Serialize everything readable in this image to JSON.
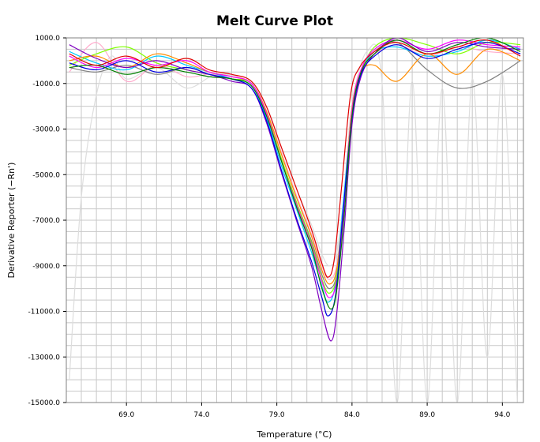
{
  "chart_data": {
    "type": "line",
    "title": "Melt Curve Plot",
    "xlabel": "Temperature (°C)",
    "ylabel": "Derivative Reporter (−Rn')",
    "xlim": [
      65.0,
      95.4
    ],
    "ylim": [
      -15000,
      1000
    ],
    "grid": true,
    "legend": "none",
    "x_ticks": [
      "69.0",
      "74.0",
      "79.0",
      "84.0",
      "89.0",
      "94.0"
    ],
    "x_tick_values": [
      69,
      74,
      79,
      84,
      89,
      94
    ],
    "y_ticks": [
      "1000.0",
      "-1000.0",
      "-3000.0",
      "-5000.0",
      "-7000.0",
      "-9000.0",
      "-11000.0",
      "-13000.0",
      "-15000.0"
    ],
    "y_tick_values": [
      1000,
      -1000,
      -3000,
      -5000,
      -7000,
      -9000,
      -11000,
      -13000,
      -15000
    ],
    "series": [
      {
        "color": "#e00000",
        "peak_x": 82.4,
        "peak_y": -9500,
        "x": [
          65.2,
          67,
          69,
          71,
          73,
          74.5,
          76,
          77.3,
          78.3,
          79.3,
          80.3,
          81.3,
          82.0,
          82.4,
          82.8,
          83.3,
          83.9,
          84.5,
          85.5,
          87,
          89,
          91,
          93,
          95.2
        ],
        "y": [
          300,
          -200,
          200,
          -300,
          100,
          -400,
          -600,
          -900,
          -2000,
          -3800,
          -5600,
          -7400,
          -8900,
          -9500,
          -8800,
          -5600,
          -1500,
          -300,
          400,
          800,
          300,
          600,
          900,
          200
        ]
      },
      {
        "color": "#008000",
        "peak_x": 82.6,
        "peak_y": -10900,
        "x": [
          65.2,
          67,
          69,
          71,
          73,
          74.5,
          76,
          77.3,
          78.3,
          79.3,
          80.3,
          81.3,
          82.0,
          82.6,
          83.0,
          83.5,
          84.0,
          84.6,
          85.5,
          87,
          89,
          91,
          93,
          95.2
        ],
        "y": [
          -300,
          -200,
          -600,
          -300,
          -500,
          -700,
          -800,
          -1100,
          -2400,
          -4400,
          -6400,
          -8200,
          -10000,
          -10900,
          -10000,
          -6600,
          -2400,
          -500,
          300,
          900,
          300,
          700,
          1000,
          400
        ]
      },
      {
        "color": "#0000e0",
        "peak_x": 82.4,
        "peak_y": -11200,
        "x": [
          65.2,
          67,
          69,
          71,
          73,
          74.5,
          76,
          77.3,
          78.3,
          79.3,
          80.3,
          81.3,
          82.0,
          82.4,
          82.9,
          83.4,
          84.0,
          84.6,
          85.5,
          87,
          89,
          91,
          93,
          95.2
        ],
        "y": [
          -100,
          -400,
          0,
          -500,
          -300,
          -600,
          -800,
          -1200,
          -2600,
          -4800,
          -6900,
          -8800,
          -10400,
          -11200,
          -10300,
          -6700,
          -2500,
          -600,
          200,
          700,
          100,
          500,
          800,
          300
        ]
      },
      {
        "color": "#8000c0",
        "peak_x": 82.6,
        "peak_y": -12300,
        "x": [
          65.2,
          67,
          69,
          71,
          73,
          74.5,
          76,
          77.3,
          78.3,
          79.3,
          80.3,
          81.3,
          82.0,
          82.6,
          83.0,
          83.5,
          84.0,
          84.6,
          85.5,
          87,
          89,
          91,
          93,
          95.2
        ],
        "y": [
          700,
          100,
          -300,
          0,
          -400,
          -600,
          -900,
          -1200,
          -2700,
          -4900,
          -7000,
          -9000,
          -11000,
          -12300,
          -11000,
          -7200,
          -2800,
          -700,
          300,
          1000,
          400,
          800,
          600,
          500
        ]
      },
      {
        "color": "#ff00ff",
        "peak_x": 82.5,
        "peak_y": -10400,
        "x": [
          65.2,
          67,
          69,
          71,
          73,
          74.5,
          76,
          77.3,
          78.3,
          79.3,
          80.3,
          81.3,
          82.0,
          82.5,
          83.0,
          83.5,
          84.0,
          84.6,
          85.5,
          87,
          89,
          91,
          93,
          95.2
        ],
        "y": [
          200,
          -300,
          100,
          -200,
          0,
          -500,
          -700,
          -1000,
          -2300,
          -4400,
          -6300,
          -8100,
          -9700,
          -10400,
          -9600,
          -6300,
          -2200,
          -400,
          500,
          900,
          500,
          900,
          700,
          600
        ]
      },
      {
        "color": "#ff8c00",
        "peak_x": 82.5,
        "peak_y": -9800,
        "x": [
          65.2,
          67,
          69,
          71,
          73,
          74.5,
          76,
          77.3,
          78.3,
          79.3,
          80.3,
          81.3,
          82.0,
          82.5,
          83.0,
          83.5,
          84.0,
          84.6,
          85.5,
          87,
          89,
          91,
          93,
          95.2
        ],
        "y": [
          0,
          200,
          -300,
          300,
          -100,
          -500,
          -700,
          -1000,
          -2200,
          -4100,
          -6000,
          -7700,
          -9200,
          -9800,
          -9100,
          -6000,
          -2100,
          -500,
          -200,
          -900,
          300,
          -600,
          500,
          0
        ]
      },
      {
        "color": "#7fff00",
        "peak_x": 82.5,
        "peak_y": -10200,
        "x": [
          65.2,
          67,
          69,
          71,
          73,
          74.5,
          76,
          77.3,
          78.3,
          79.3,
          80.3,
          81.3,
          82.0,
          82.5,
          83.0,
          83.5,
          84.0,
          84.6,
          85.5,
          87,
          89,
          91,
          93,
          95.2
        ],
        "y": [
          -200,
          300,
          600,
          -100,
          -400,
          -600,
          -800,
          -1000,
          -2300,
          -4300,
          -6200,
          -8000,
          -9600,
          -10200,
          -9400,
          -6200,
          -2200,
          -500,
          600,
          1000,
          700,
          300,
          800,
          700
        ]
      },
      {
        "color": "#00c8ff",
        "peak_x": 82.4,
        "peak_y": -10600,
        "x": [
          65.2,
          67,
          69,
          71,
          73,
          74.5,
          76,
          77.3,
          78.3,
          79.3,
          80.3,
          81.3,
          82.0,
          82.4,
          82.9,
          83.4,
          84.0,
          84.6,
          85.5,
          87,
          89,
          91,
          93,
          95.2
        ],
        "y": [
          400,
          -100,
          -400,
          200,
          -200,
          -500,
          -800,
          -1100,
          -2500,
          -4600,
          -6500,
          -8400,
          -9900,
          -10600,
          -9800,
          -6400,
          -2300,
          -500,
          400,
          600,
          200,
          400,
          900,
          500
        ]
      },
      {
        "color": "#808080",
        "peak_x": 82.5,
        "peak_y": -10000,
        "x": [
          65.2,
          67,
          69,
          71,
          73,
          74.5,
          76,
          77.3,
          78.3,
          79.3,
          80.3,
          81.3,
          82.0,
          82.5,
          83.0,
          83.5,
          84.0,
          84.6,
          85.5,
          87,
          89,
          91,
          93,
          95.2
        ],
        "y": [
          -300,
          -500,
          -200,
          -600,
          -300,
          -600,
          -800,
          -1000,
          -2300,
          -4300,
          -6200,
          -7900,
          -9400,
          -10000,
          -9300,
          -6100,
          -2100,
          -500,
          400,
          800,
          -400,
          -1200,
          -900,
          0
        ]
      },
      {
        "color": "#ffaacc",
        "peak_x": 82.5,
        "peak_y": -9600,
        "x": [
          65.2,
          67,
          69,
          71,
          73,
          74.5,
          76,
          77.3,
          78.3,
          79.3,
          80.3,
          81.3,
          82.0,
          82.5,
          83.0,
          83.5,
          84.0,
          84.6,
          85.5,
          87,
          89,
          91,
          93,
          95.2
        ],
        "y": [
          -500,
          800,
          -900,
          -200,
          -700,
          -600,
          -700,
          -1000,
          -2200,
          -4000,
          -5900,
          -7600,
          -9000,
          -9600,
          -8900,
          -5900,
          -2000,
          -400,
          300,
          700,
          200,
          600,
          400,
          300
        ]
      },
      {
        "color": "#dddddd",
        "peak_x": 82.5,
        "peak_y": -9000,
        "x": [
          65.2,
          66,
          67,
          68,
          69,
          71,
          73,
          75,
          77,
          78.3,
          79.3,
          80.3,
          81.3,
          82.0,
          82.5,
          83.0,
          83.5,
          84.0,
          85,
          86,
          87,
          88,
          89,
          90,
          91,
          92,
          93,
          94,
          95,
          95.2
        ],
        "y": [
          -14000,
          -6000,
          -1500,
          200,
          -800,
          -300,
          -1200,
          -600,
          -900,
          -2000,
          -3800,
          -5600,
          -7200,
          -8500,
          -9000,
          -8400,
          -5600,
          -1900,
          400,
          -1000,
          -15000,
          -900,
          -15000,
          -1200,
          -15000,
          -800,
          -13000,
          -600,
          -15000,
          -15000
        ]
      }
    ]
  }
}
